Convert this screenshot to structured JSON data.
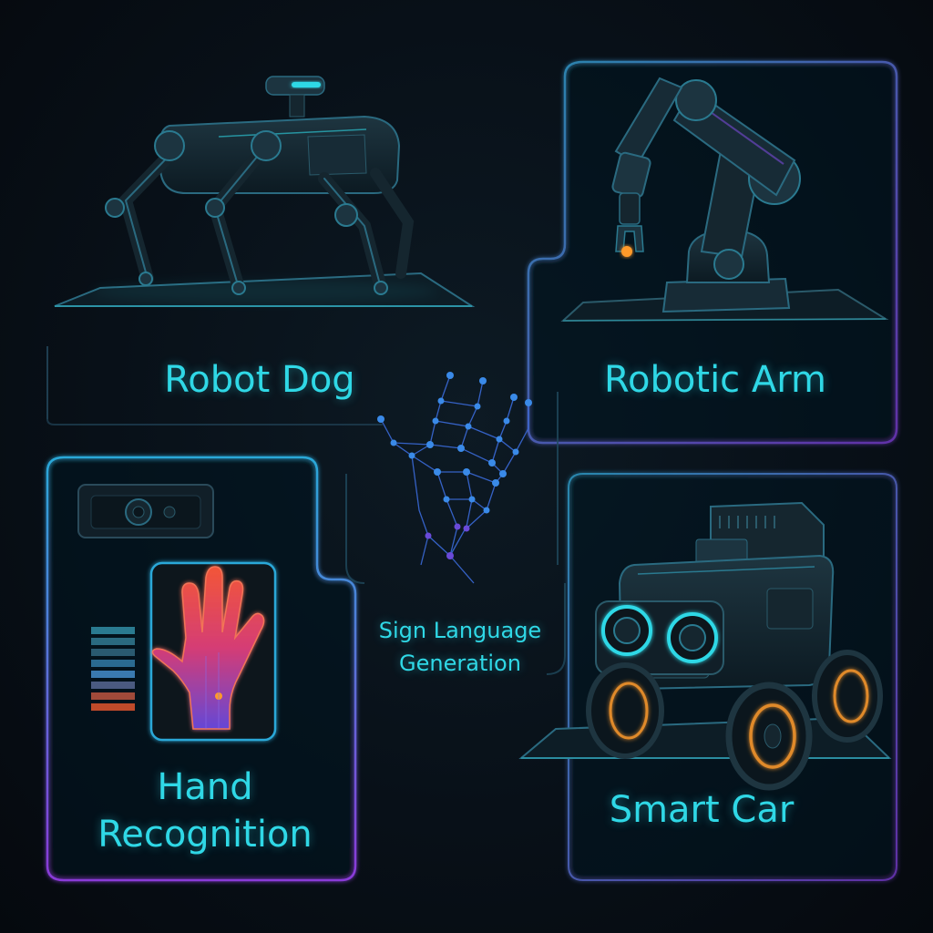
{
  "panels": {
    "robot_dog": {
      "label": "Robot Dog",
      "icon": "robot-dog-icon"
    },
    "robotic_arm": {
      "label": "Robotic Arm",
      "icon": "robotic-arm-icon"
    },
    "hand_recognition": {
      "label": "Hand Recognition",
      "icon": "heat-hand-icon"
    },
    "sign_language": {
      "label": "Sign Language Generation",
      "icon": "hand-wireframe-icon"
    },
    "smart_car": {
      "label": "Smart Car",
      "icon": "smart-car-icon"
    }
  },
  "colors": {
    "accent": "#2fd8e6",
    "frame_blue": "#2a90b8",
    "frame_violet": "#7a3ad0",
    "background": "#081018",
    "heat_hot": "#ff5a3a",
    "heat_cool": "#7a4ad8"
  }
}
